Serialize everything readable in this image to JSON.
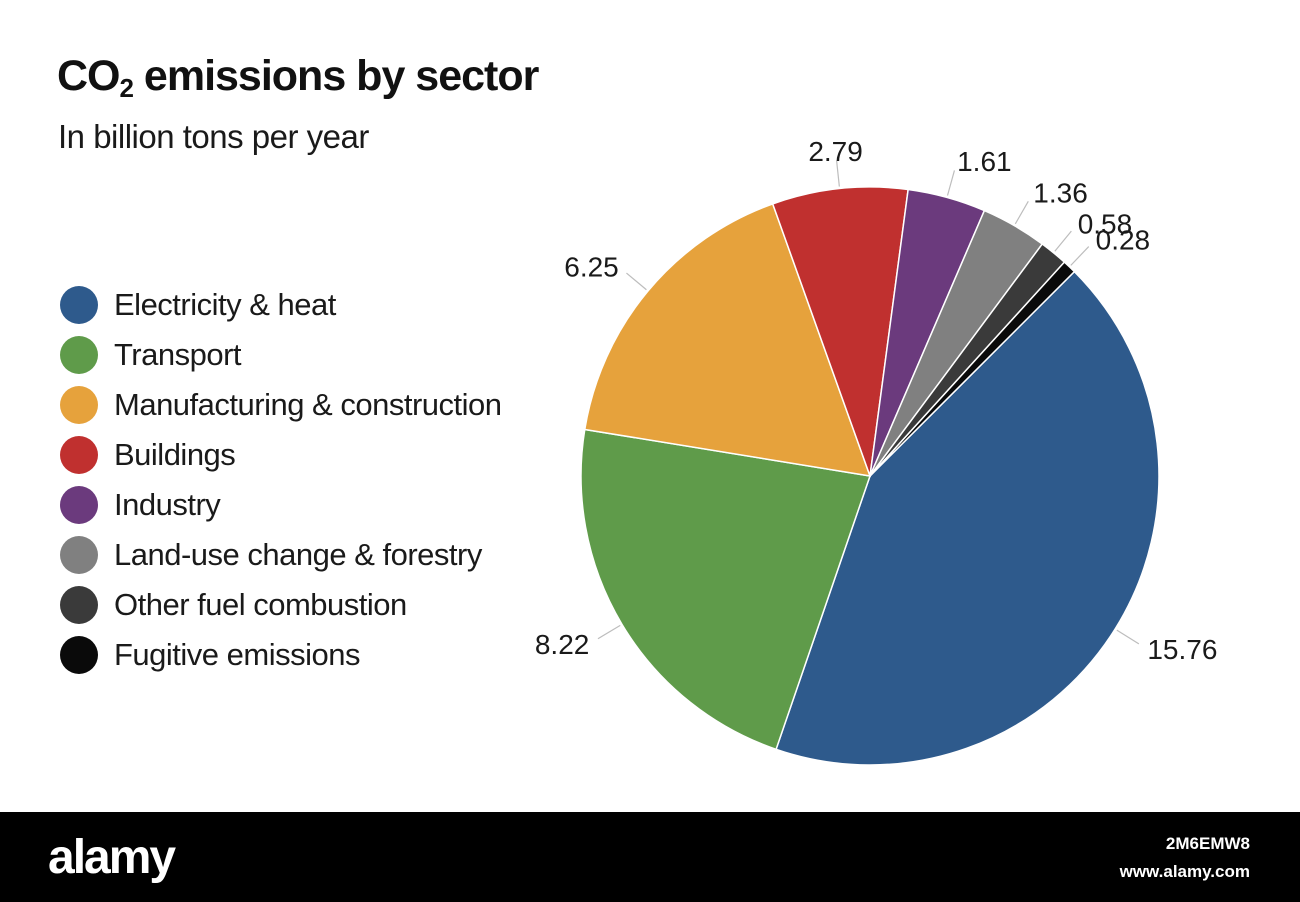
{
  "chart_data": {
    "type": "pie",
    "title_main": "CO",
    "title_sub": "2",
    "title_rest": " emissions by sector",
    "subtitle": "In billion tons per year",
    "categories": [
      "Electricity & heat",
      "Transport",
      "Manufacturing & construction",
      "Buildings",
      "Industry",
      "Land-use change & forestry",
      "Other fuel combustion",
      "Fugitive emissions"
    ],
    "values": [
      15.76,
      8.22,
      6.25,
      2.79,
      1.61,
      1.36,
      0.58,
      0.28
    ],
    "value_labels": [
      "15.76",
      "8.22",
      "6.25",
      "2.79",
      "1.61",
      "1.36",
      "0.58",
      "0.28"
    ],
    "colors": [
      "#2e5a8c",
      "#5f9b4a",
      "#e6a23c",
      "#c0302f",
      "#6b3a7d",
      "#808080",
      "#3a3a3a",
      "#0a0a0a"
    ],
    "legend_position": "left",
    "start_angle_deg": 45,
    "direction": "clockwise"
  },
  "watermark": {
    "brand": "alamy",
    "image_id": "2M6EMW8",
    "url": "www.alamy.com"
  }
}
